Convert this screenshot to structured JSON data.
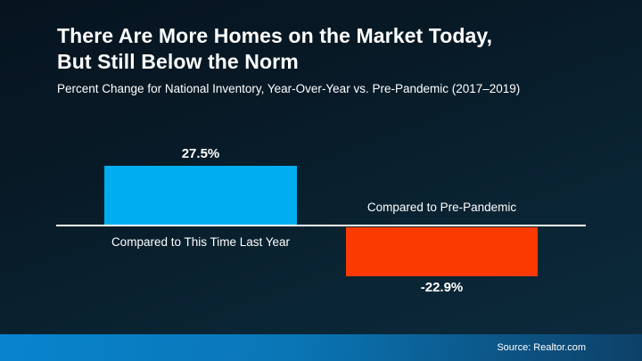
{
  "header": {
    "title_line1": "There Are More Homes on the Market Today,",
    "title_line2": "But Still Below the Norm",
    "subtitle": "Percent Change for National Inventory, Year-Over-Year vs. Pre-Pandemic (2017–2019)"
  },
  "chart_data": {
    "type": "bar",
    "categories": [
      "Compared to This Time Last Year",
      "Compared to Pre-Pandemic"
    ],
    "values": [
      27.5,
      -22.9
    ],
    "value_labels": [
      "27.5%",
      "-22.9%"
    ],
    "series_colors": [
      "#00AEEF",
      "#FB3A01"
    ],
    "baseline_value": 0,
    "ylim": [
      -30,
      35
    ],
    "grid": false,
    "legend": "none",
    "axis_line_color": "#FFFFFF"
  },
  "footer": {
    "source_label": "Source: Realtor.com"
  },
  "colors": {
    "background_dark": "#06141F",
    "background_light": "#0C2B3D",
    "positive_bar": "#00AEEF",
    "negative_bar": "#FB3A01",
    "footer_accent_left": "#0884CE",
    "footer_accent_right": "#0D4067",
    "text": "#FFFFFF"
  }
}
